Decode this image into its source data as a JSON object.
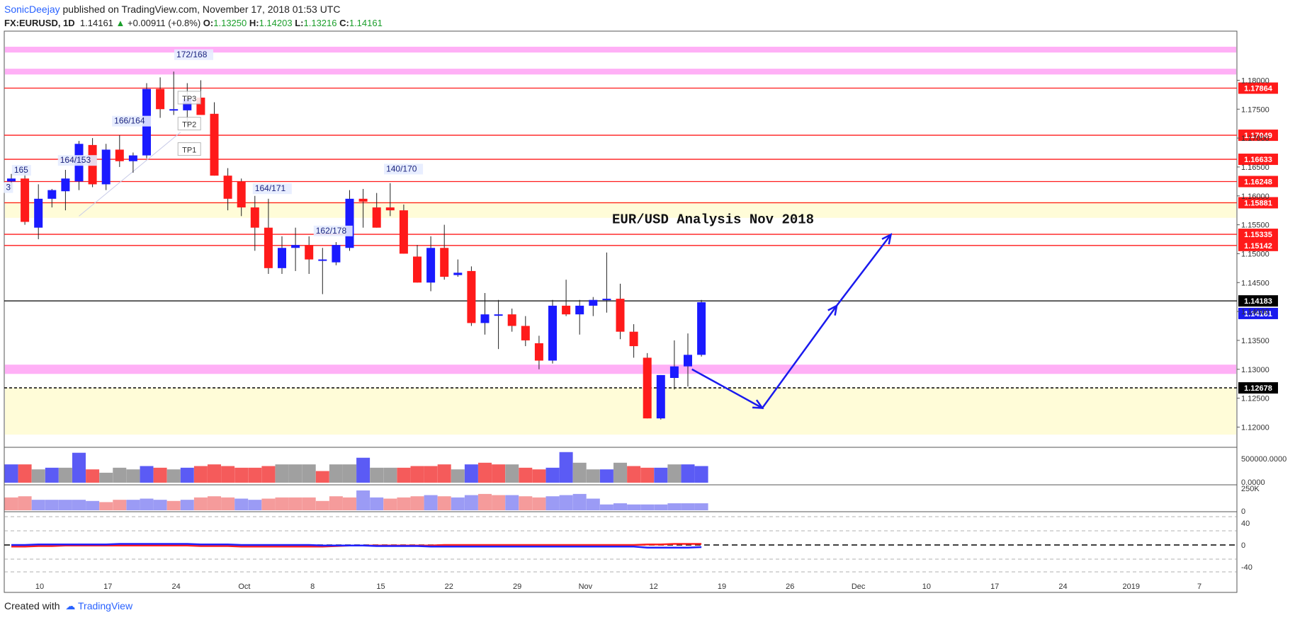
{
  "header": {
    "author": "SonicDeejay",
    "published": " published on TradingView.com, November 17, 2018 01:53 UTC",
    "symbol": "FX:EURUSD, 1D",
    "last": "1.14161",
    "change": "+0.00911 (+0.8%)",
    "o_label": "O:",
    "o": "1.13250",
    "h_label": "H:",
    "h": "1.14203",
    "l_label": "L:",
    "l": "1.13216",
    "c_label": "C:",
    "c": "1.14161"
  },
  "footer": {
    "created_with": "Created with",
    "brand": "TradingView"
  },
  "colors": {
    "bull": "#1a1aff",
    "bear": "#ff1a1a",
    "resistance": "#ff1a1a",
    "zone_pink": "#ff7cf0",
    "zone_yellow": "#fffcd8",
    "arrow": "#1a1aee"
  },
  "chart_data": {
    "type": "candlestick",
    "title": "EUR/USD Analysis Nov 2018",
    "ylim": [
      1.1165,
      1.1885
    ],
    "y_ticks": [
      "1.18000",
      "1.17500",
      "1.17000",
      "1.16500",
      "1.16000",
      "1.15500",
      "1.15000",
      "1.14500",
      "1.14000",
      "1.13500",
      "1.13000",
      "1.12500",
      "1.12000"
    ],
    "x_ticks": [
      "10",
      "17",
      "24",
      "Oct",
      "8",
      "15",
      "22",
      "29",
      "Nov",
      "12",
      "19",
      "26",
      "Dec",
      "10",
      "17",
      "24",
      "2019",
      "7"
    ],
    "candles": [
      [
        1.1625,
        1.1638,
        1.1612,
        1.163
      ],
      [
        1.163,
        1.1645,
        1.155,
        1.1555
      ],
      [
        1.1545,
        1.162,
        1.1525,
        1.1595
      ],
      [
        1.1595,
        1.1612,
        1.158,
        1.161
      ],
      [
        1.1608,
        1.1645,
        1.1575,
        1.163
      ],
      [
        1.1625,
        1.1695,
        1.161,
        1.169
      ],
      [
        1.1688,
        1.17,
        1.1615,
        1.162
      ],
      [
        1.162,
        1.169,
        1.161,
        1.168
      ],
      [
        1.168,
        1.1705,
        1.165,
        1.166
      ],
      [
        1.166,
        1.1675,
        1.164,
        1.167
      ],
      [
        1.167,
        1.1795,
        1.1665,
        1.1785
      ],
      [
        1.1785,
        1.1805,
        1.1735,
        1.175
      ],
      [
        1.175,
        1.1815,
        1.174,
        1.175
      ],
      [
        1.1748,
        1.1795,
        1.1725,
        1.1768
      ],
      [
        1.177,
        1.18,
        1.1745,
        1.174
      ],
      [
        1.1742,
        1.1762,
        1.1635,
        1.1635
      ],
      [
        1.1635,
        1.1648,
        1.1575,
        1.1595
      ],
      [
        1.1625,
        1.163,
        1.1565,
        1.158
      ],
      [
        1.158,
        1.16,
        1.1505,
        1.1545
      ],
      [
        1.1545,
        1.1595,
        1.1465,
        1.1475
      ],
      [
        1.1475,
        1.153,
        1.1465,
        1.151
      ],
      [
        1.151,
        1.1545,
        1.147,
        1.1515
      ],
      [
        1.1515,
        1.153,
        1.1465,
        1.149
      ],
      [
        1.149,
        1.151,
        1.143,
        1.149
      ],
      [
        1.1485,
        1.152,
        1.148,
        1.1515
      ],
      [
        1.151,
        1.161,
        1.1505,
        1.1595
      ],
      [
        1.1595,
        1.1612,
        1.1545,
        1.159
      ],
      [
        1.158,
        1.1605,
        1.1545,
        1.1545
      ],
      [
        1.158,
        1.1622,
        1.1565,
        1.1575
      ],
      [
        1.1575,
        1.1585,
        1.15,
        1.15
      ],
      [
        1.1495,
        1.1515,
        1.145,
        1.145
      ],
      [
        1.145,
        1.153,
        1.1435,
        1.151
      ],
      [
        1.151,
        1.155,
        1.1455,
        1.146
      ],
      [
        1.1463,
        1.149,
        1.146,
        1.1467
      ],
      [
        1.147,
        1.1478,
        1.1375,
        1.138
      ],
      [
        1.138,
        1.1432,
        1.136,
        1.1395
      ],
      [
        1.1395,
        1.142,
        1.1335,
        1.1395
      ],
      [
        1.1395,
        1.1405,
        1.1365,
        1.1375
      ],
      [
        1.1375,
        1.1392,
        1.134,
        1.135
      ],
      [
        1.1345,
        1.1358,
        1.13,
        1.1315
      ],
      [
        1.1315,
        1.142,
        1.131,
        1.141
      ],
      [
        1.141,
        1.1455,
        1.1392,
        1.1395
      ],
      [
        1.1395,
        1.142,
        1.136,
        1.141
      ],
      [
        1.141,
        1.1425,
        1.1392,
        1.142
      ],
      [
        1.1422,
        1.1502,
        1.1398,
        1.1422
      ],
      [
        1.1422,
        1.1448,
        1.1352,
        1.1365
      ],
      [
        1.1365,
        1.1378,
        1.132,
        1.134
      ],
      [
        1.132,
        1.1328,
        1.1215,
        1.1215
      ],
      [
        1.1215,
        1.129,
        1.1213,
        1.129
      ],
      [
        1.1285,
        1.135,
        1.1265,
        1.1305
      ],
      [
        1.1305,
        1.1362,
        1.127,
        1.1325
      ],
      [
        1.1325,
        1.142,
        1.1322,
        1.1416
      ]
    ],
    "levels": [
      {
        "value": 1.17864,
        "label": "1.17864"
      },
      {
        "value": 1.17049,
        "label": "1.17049"
      },
      {
        "value": 1.16633,
        "label": "1.16633"
      },
      {
        "value": 1.16248,
        "label": "1.16248"
      },
      {
        "value": 1.15881,
        "label": "1.15881"
      },
      {
        "value": 1.15335,
        "label": "1.15335"
      },
      {
        "value": 1.15142,
        "label": "1.15142"
      }
    ],
    "current": {
      "value": 1.14183,
      "label": "1.14183"
    },
    "last_price": {
      "value": 1.14161,
      "label": "1.14161"
    },
    "support": {
      "value": 1.12678,
      "label": "1.12678"
    },
    "zones": [
      {
        "from": 1.1858,
        "to": 1.1848,
        "kind": "pink"
      },
      {
        "from": 1.182,
        "to": 1.181,
        "kind": "pink"
      },
      {
        "from": 1.159,
        "to": 1.1562,
        "kind": "yellow"
      },
      {
        "from": 1.1308,
        "to": 1.1292,
        "kind": "pink"
      },
      {
        "from": 1.1268,
        "to": 1.1187,
        "kind": "yellow"
      }
    ],
    "annotations": [
      {
        "text": "172/168",
        "bar": 12.2,
        "price": 1.184
      },
      {
        "text": "166/164",
        "bar": 7.6,
        "price": 1.1725
      },
      {
        "text": "164/153",
        "bar": 3.6,
        "price": 1.1657
      },
      {
        "text": "165",
        "bar": 0.2,
        "price": 1.164
      },
      {
        "text": "3",
        "bar": -0.4,
        "price": 1.161
      },
      {
        "text": "164/171",
        "bar": 18.0,
        "price": 1.1608
      },
      {
        "text": "140/170",
        "bar": 27.7,
        "price": 1.1642
      },
      {
        "text": "162/178",
        "bar": 22.5,
        "price": 1.1535
      }
    ],
    "tp_labels": [
      {
        "text": "TP3",
        "bar": 13.1,
        "price": 1.177
      },
      {
        "text": "TP2",
        "bar": 13.1,
        "price": 1.1725
      },
      {
        "text": "TP1",
        "bar": 13.1,
        "price": 1.1681
      }
    ],
    "projection": [
      [
        50.3,
        1.13
      ],
      [
        55.5,
        1.1233
      ],
      [
        61.0,
        1.141
      ],
      [
        65.0,
        1.1533
      ]
    ],
    "volume_ticks": [
      "500000.0000",
      "0.0000"
    ],
    "volume": [
      0.55,
      0.55,
      0.4,
      0.45,
      0.45,
      0.9,
      0.4,
      0.3,
      0.45,
      0.4,
      0.5,
      0.45,
      0.4,
      0.45,
      0.5,
      0.55,
      0.5,
      0.45,
      0.45,
      0.5,
      0.55,
      0.55,
      0.55,
      0.35,
      0.55,
      0.55,
      0.75,
      0.45,
      0.45,
      0.45,
      0.5,
      0.5,
      0.55,
      0.4,
      0.55,
      0.6,
      0.55,
      0.55,
      0.45,
      0.4,
      0.45,
      0.92,
      0.6,
      0.4,
      0.4,
      0.6,
      0.5,
      0.45,
      0.45,
      0.55,
      0.55,
      0.5
    ],
    "volume_dir": [
      "bull",
      "bear",
      "gray",
      "bull",
      "gray",
      "bull",
      "bear",
      "gray",
      "gray",
      "gray",
      "bull",
      "bear",
      "gray",
      "bull",
      "bear",
      "bear",
      "bear",
      "bear",
      "bear",
      "bear",
      "gray",
      "gray",
      "gray",
      "bear",
      "gray",
      "gray",
      "bull",
      "gray",
      "gray",
      "bear",
      "bear",
      "bear",
      "bear",
      "gray",
      "bull",
      "bear",
      "bear",
      "gray",
      "bear",
      "bear",
      "bull",
      "bull",
      "gray",
      "gray",
      "bull",
      "gray",
      "bear",
      "bear",
      "bull",
      "gray",
      "bull",
      "bull"
    ],
    "osc_ticks": [
      "250K",
      "0"
    ],
    "osc": [
      0.55,
      0.6,
      0.45,
      0.45,
      0.45,
      0.45,
      0.4,
      0.35,
      0.45,
      0.45,
      0.5,
      0.45,
      0.4,
      0.45,
      0.55,
      0.6,
      0.55,
      0.5,
      0.45,
      0.5,
      0.55,
      0.55,
      0.55,
      0.4,
      0.6,
      0.55,
      0.85,
      0.55,
      0.5,
      0.55,
      0.6,
      0.65,
      0.6,
      0.55,
      0.65,
      0.7,
      0.65,
      0.65,
      0.6,
      0.55,
      0.6,
      0.65,
      0.7,
      0.5,
      0.25,
      0.3,
      0.25,
      0.25,
      0.25,
      0.3,
      0.3,
      0.3
    ],
    "osc_dir": [
      "bear",
      "bear",
      "bull",
      "bull",
      "bull",
      "bull",
      "bull",
      "bear",
      "bear",
      "bull",
      "bull",
      "bull",
      "bear",
      "bull",
      "bear",
      "bear",
      "bear",
      "bull",
      "bull",
      "bear",
      "bear",
      "bear",
      "bear",
      "bear",
      "bear",
      "bear",
      "bull",
      "bull",
      "bear",
      "bear",
      "bear",
      "bull",
      "bear",
      "bull",
      "bull",
      "bear",
      "bear",
      "bull",
      "bear",
      "bear",
      "bull",
      "bull",
      "bull",
      "bull",
      "bull",
      "bull",
      "bull",
      "bull",
      "bull",
      "bull",
      "bull",
      "bull"
    ],
    "macd_ticks": [
      "40",
      "0",
      "-40"
    ],
    "macd_red": [
      -3,
      -3,
      -2,
      -2,
      -1,
      -1,
      -1,
      -1,
      -1,
      -1,
      -1,
      -1,
      -1,
      -1,
      -2,
      -2,
      -2,
      -3,
      -3,
      -3,
      -3,
      -3,
      -3,
      -3,
      -2,
      -1,
      -1,
      -1,
      -1,
      -1,
      -1,
      -1,
      0,
      0,
      0,
      0,
      0,
      0,
      0,
      0,
      0,
      0,
      0,
      0,
      0,
      0,
      0,
      1,
      1,
      2,
      2,
      2
    ],
    "macd_blue": [
      0,
      0,
      1,
      1,
      1,
      1,
      1,
      1,
      2,
      2,
      2,
      2,
      2,
      2,
      1,
      1,
      1,
      0,
      0,
      0,
      0,
      0,
      0,
      -1,
      -1,
      -1,
      -1,
      -2,
      -2,
      -2,
      -2,
      -3,
      -3,
      -3,
      -3,
      -3,
      -3,
      -3,
      -3,
      -3,
      -3,
      -3,
      -3,
      -3,
      -3,
      -3,
      -3,
      -5,
      -5,
      -5,
      -5,
      -4
    ]
  }
}
